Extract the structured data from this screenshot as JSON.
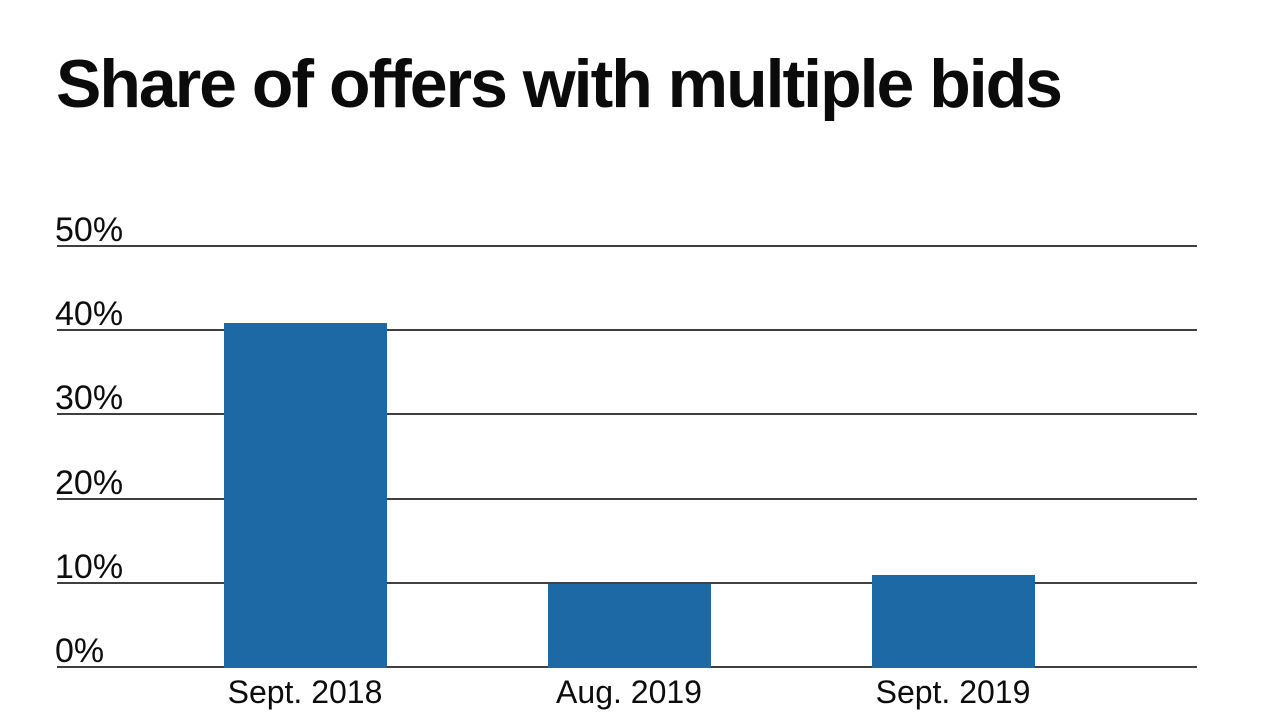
{
  "title": "Share of offers with multiple bids",
  "chart_data": {
    "type": "bar",
    "title": "Share of offers with multiple bids",
    "categories": [
      "Sept. 2018",
      "Aug. 2019",
      "Sept. 2019"
    ],
    "values": [
      41,
      10,
      11
    ],
    "xlabel": "",
    "ylabel": "",
    "ylim": [
      0,
      50
    ],
    "yticks": [
      0,
      10,
      20,
      30,
      40,
      50
    ],
    "ytick_format": "{v}%",
    "grid": "horizontal",
    "legend": "none",
    "colors": {
      "bar": "#1c69a6",
      "gridline": "#3f3f3f",
      "axis": "#3f3f3f",
      "text": "#0d0d0d",
      "background": "#ffffff"
    }
  }
}
